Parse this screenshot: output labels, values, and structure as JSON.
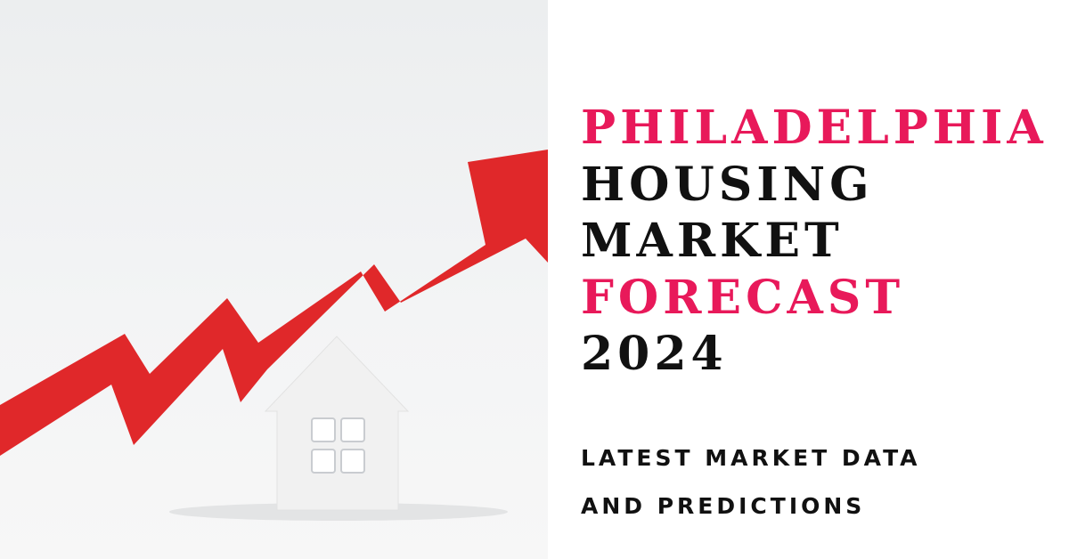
{
  "title": {
    "line1": "PHILADELPHIA",
    "line2": "HOUSING",
    "line3": "MARKET",
    "line4": "FORECAST",
    "line5": "2024"
  },
  "subtitle": {
    "line1": "LATEST MARKET DATA",
    "line2": "AND PREDICTIONS"
  },
  "colors": {
    "accent": "#e8195a",
    "text": "#111111",
    "arrow": "#e0282a",
    "house": "#f2f2f2"
  },
  "image": {
    "icons": [
      "rising-arrow-icon",
      "house-icon"
    ]
  }
}
